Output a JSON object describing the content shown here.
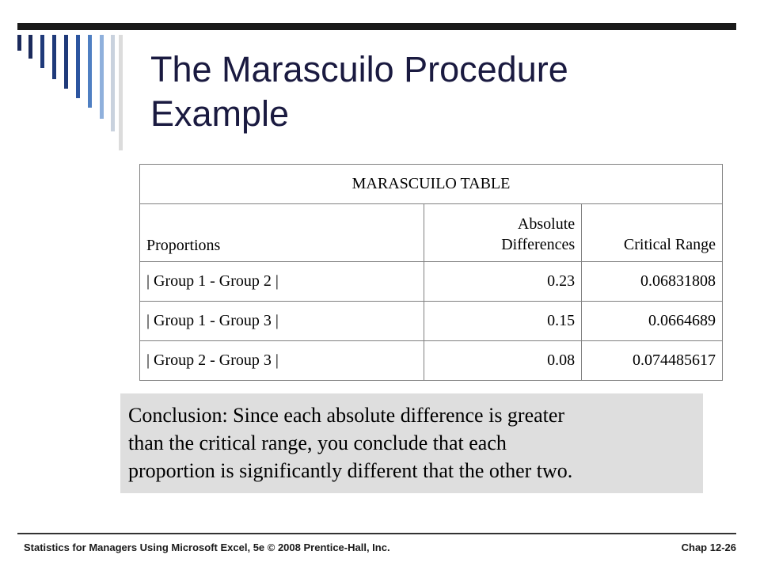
{
  "slide": {
    "title_line1": "The Marascuilo Procedure",
    "title_line2": "Example"
  },
  "table": {
    "title": "MARASCUILO TABLE",
    "headers": {
      "proportions": "Proportions",
      "abs_line1": "Absolute",
      "abs_line2": "Differences",
      "critical_range": "Critical Range"
    },
    "rows": [
      {
        "pair": "| Group 1 - Group 2 |",
        "abs_diff": "0.23",
        "critical": "0.06831808"
      },
      {
        "pair": "| Group 1 - Group 3 |",
        "abs_diff": "0.15",
        "critical": "0.0664689"
      },
      {
        "pair": "| Group 2 - Group 3 |",
        "abs_diff": "0.08",
        "critical": "0.074485617"
      }
    ]
  },
  "conclusion": {
    "line1": "Conclusion:  Since each absolute difference is greater",
    "line2": "than the critical range, you conclude that each",
    "line3": "proportion is significantly different that the other two."
  },
  "footer": {
    "left": "Statistics for Managers Using Microsoft Excel, 5e © 2008 Prentice-Hall, Inc.",
    "right": "Chap 12-26"
  },
  "colors": {
    "title": "#1a1a40",
    "conclusion_bg": "#dedede",
    "rule": "#1a1a1a",
    "bar_palette": [
      "#1b2a5c",
      "#1f3a7a",
      "#2c55a0",
      "#4f7fc2",
      "#8fb0dc",
      "#c9d2de",
      "#dcdcdc"
    ]
  }
}
